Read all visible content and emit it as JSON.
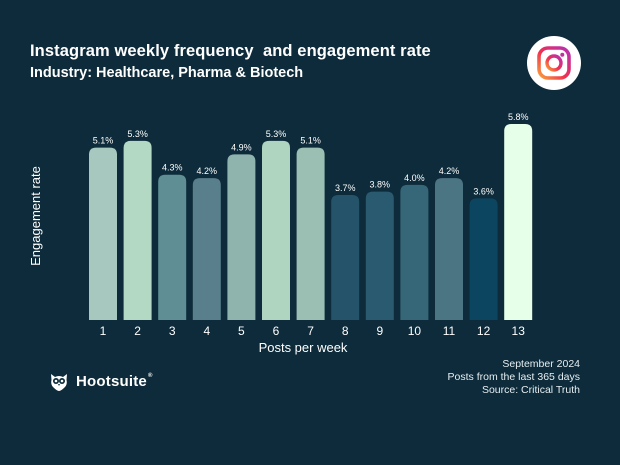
{
  "header": {
    "title": "Instagram weekly frequency  and engagement rate",
    "subtitle": "Industry: Healthcare, Pharma & Biotech"
  },
  "icons": {
    "platform_logo": "instagram-icon",
    "brand_logo": "hootsuite-owl-icon"
  },
  "colors": {
    "background": "#0d2b3a",
    "accent_highlight": "#e6ffe8"
  },
  "chart_data": {
    "type": "bar",
    "title": "Instagram weekly frequency  and engagement rate",
    "subtitle": "Industry: Healthcare, Pharma & Biotech",
    "xlabel": "Posts per week",
    "ylabel": "Engagement rate",
    "categories": [
      "1",
      "2",
      "3",
      "4",
      "5",
      "6",
      "7",
      "8",
      "9",
      "10",
      "11",
      "12",
      "13"
    ],
    "values": [
      5.1,
      5.3,
      4.3,
      4.2,
      4.9,
      5.3,
      5.1,
      3.7,
      3.8,
      4.0,
      4.2,
      3.6,
      5.8
    ],
    "data_labels": [
      "5.1%",
      "5.3%",
      "4.3%",
      "4.2%",
      "4.9%",
      "5.3%",
      "5.1%",
      "3.7%",
      "3.8%",
      "4.0%",
      "4.2%",
      "3.6%",
      "5.8%"
    ],
    "bar_colors": [
      "#a6c8be",
      "#b3d8c4",
      "#5f8e95",
      "#587f8b",
      "#8fb3ad",
      "#afd5c1",
      "#9bbfb2",
      "#24536a",
      "#2a5a6f",
      "#366779",
      "#4c7584",
      "#0c4560",
      "#e6ffe8"
    ],
    "ylim": [
      0,
      5.8
    ],
    "grid": false,
    "legend": "none"
  },
  "footer": {
    "date": "September 2024",
    "scope": "Posts from the last 365 days",
    "source": "Source: Critical Truth"
  },
  "brand": {
    "name": "Hootsuite",
    "mark": "®"
  }
}
